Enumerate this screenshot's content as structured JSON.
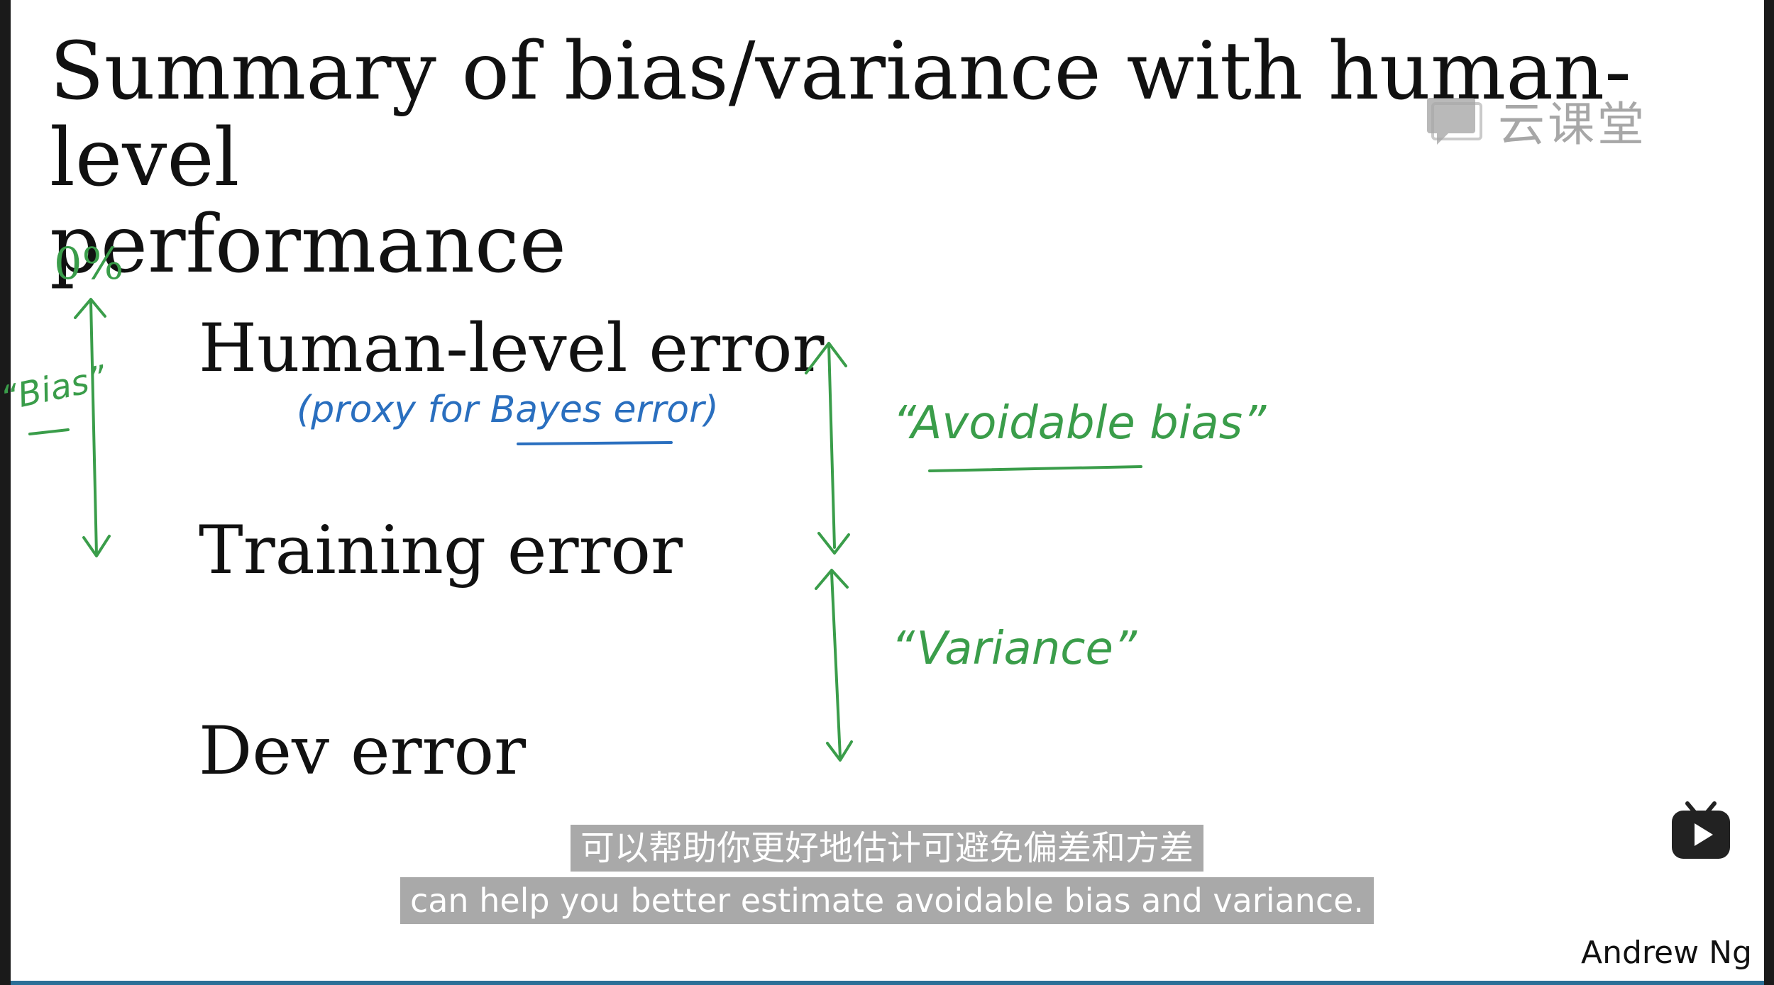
{
  "slide": {
    "title_line1": "Summary of bias/variance with human-level",
    "title_line2": "performance",
    "rows": {
      "human": "Human-level error",
      "training": "Training error",
      "dev": "Dev error"
    },
    "author": "Andrew Ng"
  },
  "handwriting": {
    "zero_percent": "0%",
    "bias_quote": "“Bias”",
    "proxy_note": "(proxy for Bayes error)",
    "avoidable_bias": "“Avoidable bias”",
    "variance": "“Variance”",
    "ink_colors": {
      "blue": "#2a6fbf",
      "green": "#3a9d4a"
    }
  },
  "watermark": {
    "text": "云课堂",
    "icon": "chat-bubble-icon"
  },
  "subtitles": {
    "zh": "可以帮助你更好地估计可避免偏差和方差",
    "en": "can help you better estimate avoidable bias and variance."
  },
  "player": {
    "logo_icon": "tv-play-icon"
  }
}
